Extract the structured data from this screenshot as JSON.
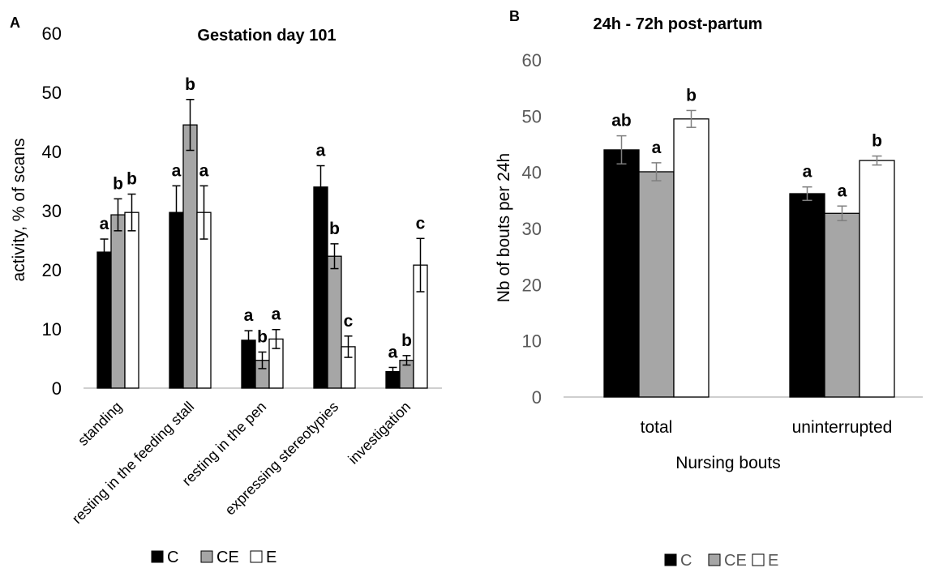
{
  "colors": {
    "C": "#000000",
    "CE": "#a6a6a6",
    "E": "#ffffff",
    "err_A": "#000000",
    "err_B": "#7f7f7f",
    "axis": "#bfbfbf"
  },
  "chart_data": [
    {
      "panel": "A",
      "type": "bar",
      "title": "Gestation day  101",
      "ylabel": "activity, % of scans",
      "xlabel": "",
      "ylim": [
        0,
        60
      ],
      "yticks": [
        "0",
        "10",
        "20",
        "30",
        "40",
        "50",
        "60"
      ],
      "grid": false,
      "legend_position": "bottom",
      "categories": [
        "standing",
        "resting in the feeding stall",
        "resting in the pen",
        "expressing stereotypies",
        "investigation"
      ],
      "series": [
        {
          "name": "C",
          "values": [
            23,
            29.7,
            8.1,
            34,
            2.8
          ],
          "errors": [
            2.2,
            4.5,
            1.6,
            3.6,
            0.7
          ],
          "letters": [
            "a",
            "a",
            "a",
            "a",
            "a"
          ]
        },
        {
          "name": "CE",
          "values": [
            29.3,
            44.5,
            4.7,
            22.3,
            4.7
          ],
          "errors": [
            2.7,
            4.3,
            1.4,
            2.1,
            0.8
          ],
          "letters": [
            "b",
            "b",
            "b",
            "b",
            "b"
          ]
        },
        {
          "name": "E",
          "values": [
            29.7,
            29.7,
            8.3,
            7,
            20.8
          ],
          "errors": [
            3.1,
            4.5,
            1.6,
            1.8,
            4.5
          ],
          "letters": [
            "b",
            "a",
            "a",
            "c",
            "c"
          ]
        }
      ]
    },
    {
      "panel": "B",
      "type": "bar",
      "title": "24h - 72h post-partum",
      "ylabel": "Nb of bouts per 24h",
      "xlabel": "Nursing bouts",
      "ylim": [
        0,
        60
      ],
      "yticks": [
        "0",
        "10",
        "20",
        "30",
        "40",
        "50",
        "60"
      ],
      "grid": false,
      "legend_position": "bottom",
      "categories": [
        "total",
        "uninterrupted"
      ],
      "series": [
        {
          "name": "C",
          "values": [
            44,
            36.2
          ],
          "errors": [
            2.5,
            1.2
          ],
          "letters": [
            "ab",
            "a"
          ]
        },
        {
          "name": "CE",
          "values": [
            40.1,
            32.7
          ],
          "errors": [
            1.6,
            1.3
          ],
          "letters": [
            "a",
            "a"
          ]
        },
        {
          "name": "E",
          "values": [
            49.5,
            42.1
          ],
          "errors": [
            1.5,
            0.8
          ],
          "letters": [
            "b",
            "b"
          ]
        }
      ]
    }
  ]
}
